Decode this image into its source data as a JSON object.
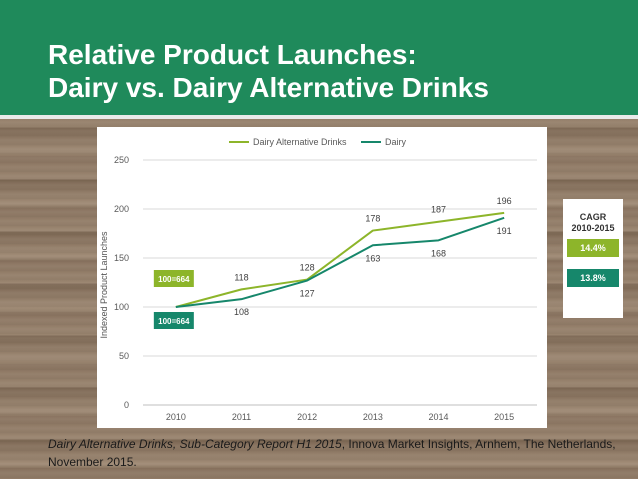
{
  "slide": {
    "title_line1": "Relative Product Launches:",
    "title_line2": "Dairy vs. Dairy Alternative Drinks"
  },
  "chart_data": {
    "type": "line",
    "x": [
      "2010",
      "2011",
      "2012",
      "2013",
      "2014",
      "2015"
    ],
    "ylabel": "Indexed Product Launches",
    "ylim": [
      0,
      250
    ],
    "yticks": [
      0,
      50,
      100,
      150,
      200,
      250
    ],
    "grid": true,
    "legend_position": "top",
    "series": [
      {
        "name": "Dairy Alternative Drinks",
        "values": [
          100,
          118,
          128,
          178,
          187,
          196
        ],
        "color": "#8db52a",
        "base_label": "100=664"
      },
      {
        "name": "Dairy",
        "values": [
          100,
          108,
          127,
          163,
          168,
          191
        ],
        "color": "#16876b",
        "base_label": "100=664"
      }
    ]
  },
  "cagr": {
    "title_line1": "CAGR",
    "title_line2": "2010-2015",
    "dairy_alt": "14.4%",
    "dairy": "13.8%",
    "dairy_alt_color": "#8db52a",
    "dairy_color": "#16876b"
  },
  "source": {
    "italic": "Dairy Alternative Drinks, Sub-Category Report H1 2015",
    "rest": ", Innova Market Insights, Arnhem, The Netherlands, November 2015."
  }
}
